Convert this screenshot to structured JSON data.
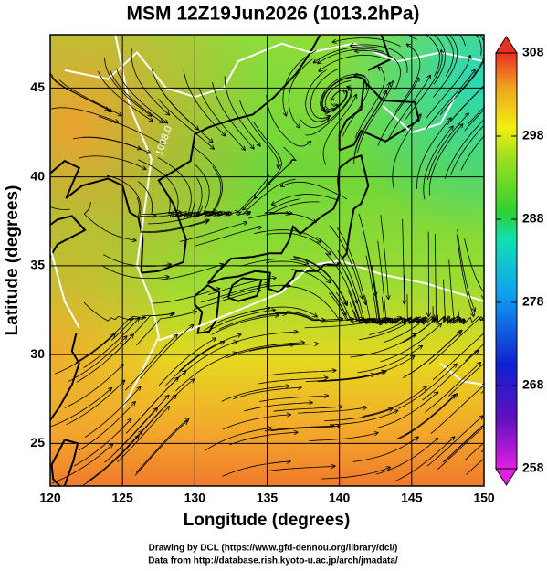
{
  "title": "MSM 12Z19Jun2026 (1013.2hPa)",
  "x_axis": {
    "label": "Longitude (degrees)",
    "lim": [
      120,
      150
    ],
    "ticks": [
      120,
      125,
      130,
      135,
      140,
      145,
      150
    ]
  },
  "y_axis": {
    "label": "Latitude  (degrees)",
    "lim": [
      22.6,
      48
    ],
    "ticks": [
      25,
      30,
      35,
      40,
      45
    ]
  },
  "colorbar": {
    "lim": [
      258,
      308
    ],
    "ticks": [
      258,
      268,
      278,
      288,
      298,
      308
    ]
  },
  "contour_labels": [
    "1008.0"
  ],
  "credits": [
    "Drawing by DCL (https://www.gfd-dennou.org/library/dcl/)",
    "Data from http://database.rish.kyoto-u.ac.jp/arch/jmadata/"
  ]
}
